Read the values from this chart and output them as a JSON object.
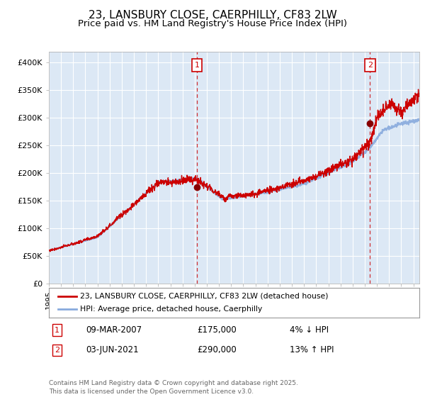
{
  "title": "23, LANSBURY CLOSE, CAERPHILLY, CF83 2LW",
  "subtitle": "Price paid vs. HM Land Registry's House Price Index (HPI)",
  "title_fontsize": 11,
  "subtitle_fontsize": 9.5,
  "background_color": "#ffffff",
  "plot_bg_color": "#dce8f5",
  "legend_label_red": "23, LANSBURY CLOSE, CAERPHILLY, CF83 2LW (detached house)",
  "legend_label_blue": "HPI: Average price, detached house, Caerphilly",
  "sale1_date": "09-MAR-2007",
  "sale1_price": 175000,
  "sale1_label": "1",
  "sale1_note": "4% ↓ HPI",
  "sale2_date": "03-JUN-2021",
  "sale2_price": 290000,
  "sale2_label": "2",
  "sale2_note": "13% ↑ HPI",
  "yticks": [
    0,
    50000,
    100000,
    150000,
    200000,
    250000,
    300000,
    350000,
    400000
  ],
  "ytick_labels": [
    "£0",
    "£50K",
    "£100K",
    "£150K",
    "£200K",
    "£250K",
    "£300K",
    "£350K",
    "£400K"
  ],
  "copyright_text": "Contains HM Land Registry data © Crown copyright and database right 2025.\nThis data is licensed under the Open Government Licence v3.0.",
  "line_red_color": "#cc0000",
  "line_blue_color": "#88aadd",
  "sale_marker_color": "#880000",
  "vline_color": "#cc0000",
  "annotation_box_color": "#cc0000",
  "xlim_start": 1995.0,
  "xlim_end": 2025.5,
  "ylim_bottom": 0,
  "ylim_top": 420000,
  "sale1_x": 2007.19,
  "sale2_x": 2021.42
}
